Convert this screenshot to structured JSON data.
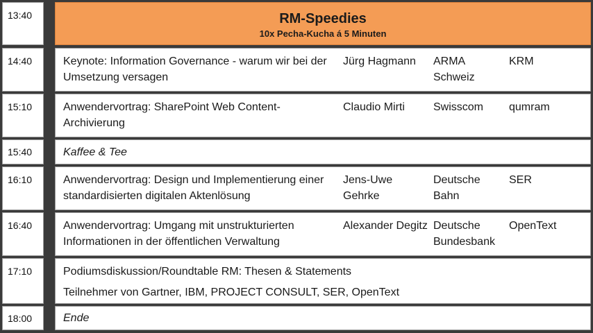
{
  "header": {
    "time": "13:40",
    "title": "RM-Speedies",
    "subtitle": "10x Pecha-Kucha á 5 Minuten"
  },
  "sessions": [
    {
      "time": "14:40",
      "title": "Keynote: Information Governance - warum wir bei der Umsetzung versagen",
      "speaker": "Jürg Hagmann",
      "organization": "ARMA Schweiz",
      "vendor": "KRM"
    },
    {
      "time": "15:10",
      "title": "Anwendervortrag: SharePoint Web Content-Archivierung",
      "speaker": "Claudio Mirti",
      "organization": "Swisscom",
      "vendor": "qumram"
    },
    {
      "time": "15:40",
      "title": "Kaffee & Tee"
    },
    {
      "time": "16:10",
      "title": "Anwendervortrag: Design und Implementierung einer standardisierten digitalen Aktenlösung",
      "speaker": "Jens-Uwe Gehrke",
      "organization": "Deutsche Bahn",
      "vendor": "SER"
    },
    {
      "time": "16:40",
      "title": "Anwendervortrag: Umgang mit unstrukturierten Informationen in der öffentlichen Verwaltung",
      "speaker": "Alexander Degitz",
      "organization": "Deutsche Bundesbank",
      "vendor": "OpenText"
    },
    {
      "time": "17:10",
      "title": "Podiumsdiskussion/Roundtable RM: Thesen & Statements",
      "participants": "Teilnehmer von Gartner, IBM, PROJECT CONSULT, SER, OpenText"
    },
    {
      "time": "18:00",
      "title": "Ende"
    }
  ]
}
